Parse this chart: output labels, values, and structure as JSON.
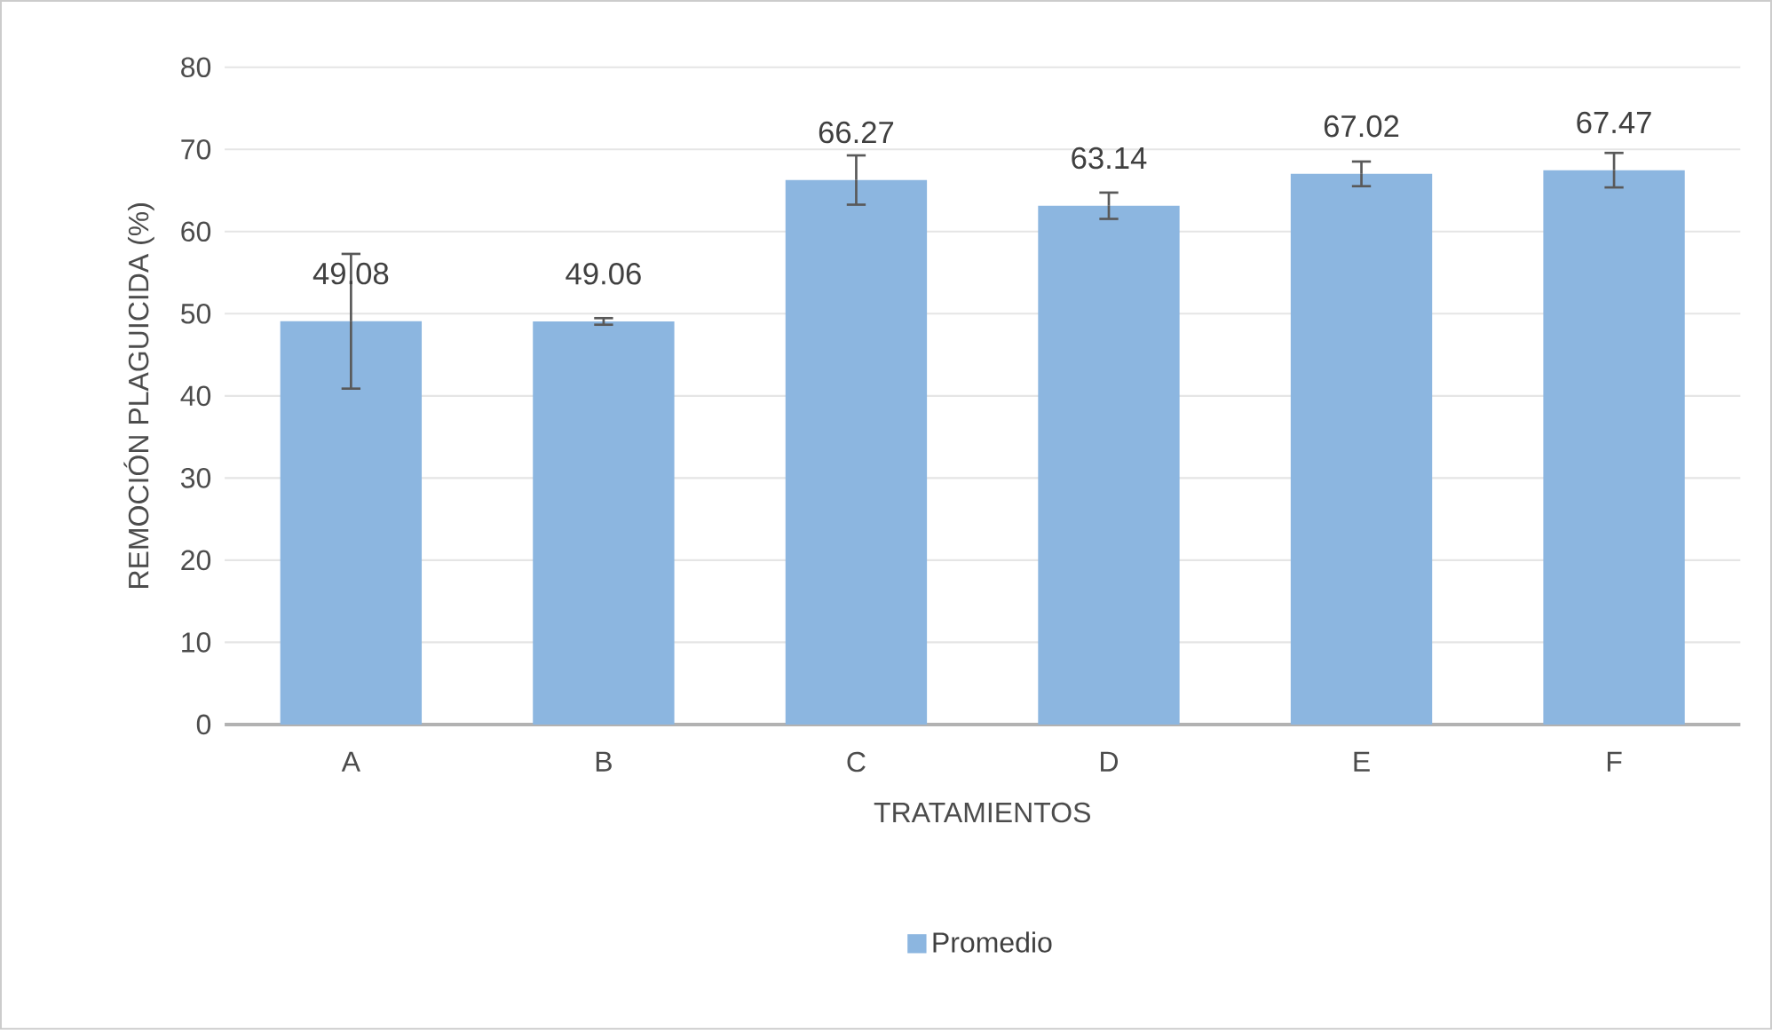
{
  "chart_data": {
    "type": "bar",
    "xlabel": "TRATAMIENTOS",
    "ylabel": "REMOCIÓN PLAGUICIDA (%)",
    "categories": [
      "A",
      "B",
      "C",
      "D",
      "E",
      "F"
    ],
    "series": [
      {
        "name": "Promedio",
        "color": "#8cb6e0",
        "values": [
          49.08,
          49.06,
          66.27,
          63.14,
          67.02,
          67.47
        ],
        "errors": [
          8.2,
          0.4,
          3.0,
          1.6,
          1.5,
          2.1
        ]
      }
    ],
    "ylim": [
      0,
      80
    ],
    "yticks": [
      0,
      10,
      20,
      30,
      40,
      50,
      60,
      70,
      80
    ],
    "grid": "y",
    "legend": "bottom",
    "data_labels": true
  }
}
